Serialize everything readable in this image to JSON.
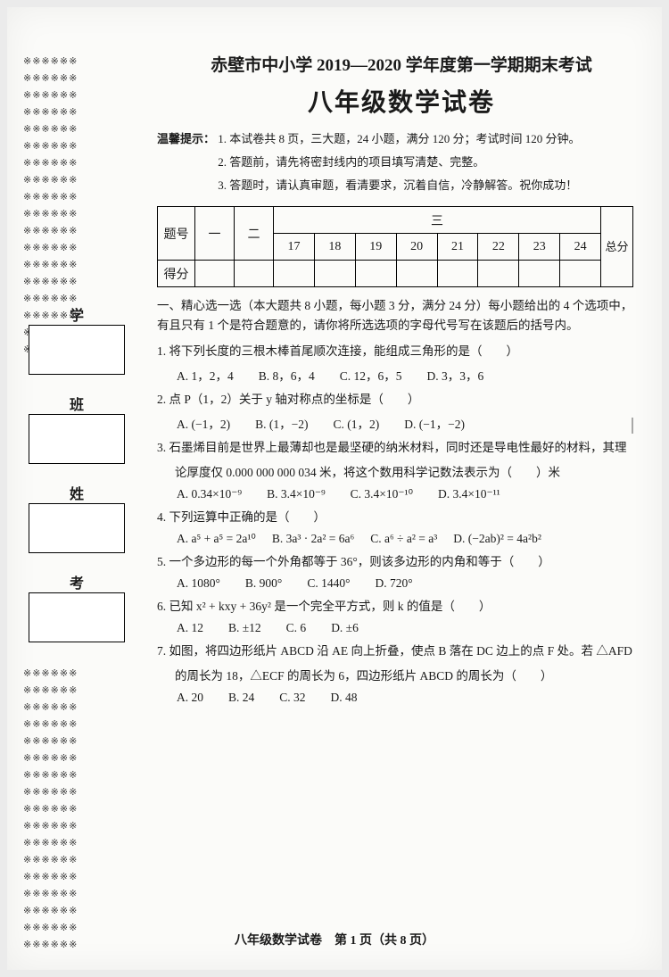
{
  "seal_line": "※※※※※※",
  "header": {
    "line1": "赤壁市中小学 2019—2020 学年度第一学期期末考试",
    "line2": "八年级数学试卷"
  },
  "tips": {
    "prefix": "温馨提示：",
    "t1": "1. 本试卷共 8 页，三大题，24 小题，满分 120 分；考试时间 120 分钟。",
    "t2": "2. 答题前，请先将密封线内的项目填写清楚、完整。",
    "t3": "3. 答题时，请认真审题，看清要求，沉着自信，冷静解答。祝你成功！"
  },
  "side": {
    "school": "学　校",
    "class": "班　级",
    "name": "姓　名",
    "number": "考　号"
  },
  "score_table": {
    "r1": "题号",
    "r2": "得分",
    "c1": "一",
    "c2": "二",
    "c3": "三",
    "last": "总分",
    "nums": [
      "17",
      "18",
      "19",
      "20",
      "21",
      "22",
      "23",
      "24"
    ]
  },
  "section1": {
    "title": "一、精心选一选（本大题共 8 小题，每小题 3 分，满分 24 分）每小题给出的 4 个选项中，",
    "title2": "有且只有 1 个是符合题意的，请你将所选选项的字母代号写在该题后的括号内。"
  },
  "q1": {
    "stem": "1. 将下列长度的三根木棒首尾顺次连接，能组成三角形的是（　　）",
    "A": "A. 1，2，4",
    "B": "B. 8，6，4",
    "C": "C. 12，6，5",
    "D": "D. 3，3，6"
  },
  "q2": {
    "stem": "2. 点 P（1，2）关于 y 轴对称点的坐标是（　　）",
    "A": "A. (−1，2)",
    "B": "B. (1，−2)",
    "C": "C. (1，2)",
    "D": "D. (−1，−2)"
  },
  "q3": {
    "stem1": "3. 石墨烯目前是世界上最薄却也是最坚硬的纳米材料，同时还是导电性最好的材料，其理",
    "stem2": "论厚度仅 0.000 000 000 034 米，将这个数用科学记数法表示为（　　）米",
    "A": "A. 0.34×10⁻⁹",
    "B": "B. 3.4×10⁻⁹",
    "C": "C. 3.4×10⁻¹⁰",
    "D": "D. 3.4×10⁻¹¹"
  },
  "q4": {
    "stem": "4. 下列运算中正确的是（　　）",
    "A": "A. a⁵ + a⁵ = 2a¹⁰",
    "B": "B. 3a³ · 2a² = 6a⁶",
    "C": "C. a⁶ ÷ a² = a³",
    "D": "D. (−2ab)² = 4a²b²"
  },
  "q5": {
    "stem": "5. 一个多边形的每一个外角都等于 36°，则该多边形的内角和等于（　　）",
    "A": "A. 1080°",
    "B": "B. 900°",
    "C": "C. 1440°",
    "D": "D. 720°"
  },
  "q6": {
    "stem": "6. 已知 x² + kxy + 36y² 是一个完全平方式，则 k 的值是（　　）",
    "A": "A. 12",
    "B": "B. ±12",
    "C": "C. 6",
    "D": "D. ±6"
  },
  "q7": {
    "stem1": "7. 如图，将四边形纸片 ABCD 沿 AE 向上折叠，使点 B 落在 DC 边上的点 F 处。若 △AFD",
    "stem2": "的周长为 18，△ECF 的周长为 6，四边形纸片 ABCD 的周长为（　　）",
    "A": "A. 20",
    "B": "B. 24",
    "C": "C. 32",
    "D": "D. 48"
  },
  "footer": "八年级数学试卷　第 1 页（共 8 页）"
}
